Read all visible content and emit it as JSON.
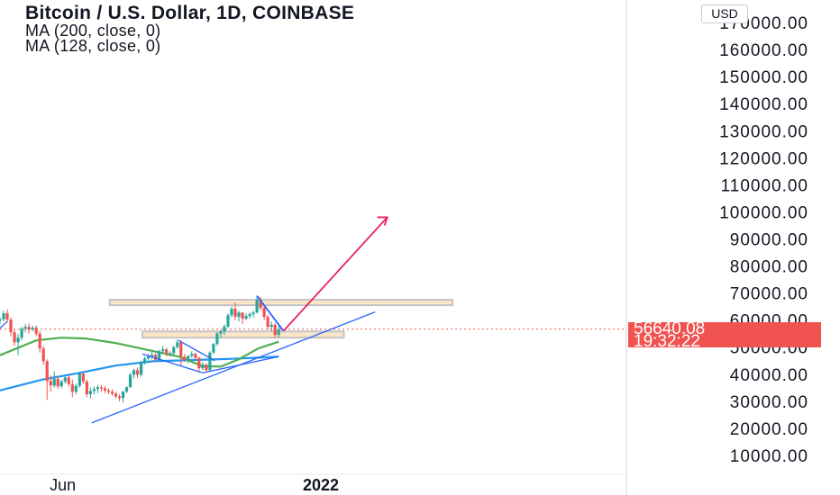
{
  "legend": {
    "title": "Bitcoin / U.S. Dollar, 1D, COINBASE",
    "ma1": "MA (200, close, 0)",
    "ma2": "MA (128, close, 0)"
  },
  "currency": "USD",
  "last_price": "56640.08",
  "countdown": "19:32:22",
  "chart_data": {
    "type": "candlestick",
    "ylim": [
      0,
      180000
    ],
    "y_ticks": [
      10000,
      20000,
      30000,
      40000,
      50000,
      60000,
      70000,
      80000,
      90000,
      100000,
      110000,
      120000,
      130000,
      140000,
      150000,
      160000,
      170000
    ],
    "y_tick_labels": [
      "10000.00",
      "20000.00",
      "30000.00",
      "40000.00",
      "50000.00",
      "60000.00",
      "70000.00",
      "80000.00",
      "90000.00",
      "100000.00",
      "110000.00",
      "120000.00",
      "130000.00",
      "140000.00",
      "150000.00",
      "160000.00",
      "170000.00"
    ],
    "x_tick_labels": [
      {
        "label": "Jun",
        "date": "2021-06-01"
      },
      {
        "label": "2022",
        "date": "2022-01-01"
      }
    ],
    "last_price": 56640.08,
    "candles": [
      [
        "2021-04-10",
        59800,
        61000,
        58500,
        60300
      ],
      [
        "2021-04-13",
        60300,
        63500,
        59500,
        62500
      ],
      [
        "2021-04-16",
        62500,
        64000,
        59000,
        60200
      ],
      [
        "2021-04-19",
        60200,
        61000,
        54000,
        55500
      ],
      [
        "2021-04-22",
        55500,
        56500,
        50500,
        51800
      ],
      [
        "2021-04-25",
        51800,
        55000,
        47000,
        53500
      ],
      [
        "2021-04-28",
        53500,
        57500,
        52500,
        56800
      ],
      [
        "2021-05-01",
        56800,
        58500,
        55500,
        57500
      ],
      [
        "2021-05-04",
        57500,
        58800,
        55000,
        56500
      ],
      [
        "2021-05-07",
        56500,
        58000,
        55800,
        57200
      ],
      [
        "2021-05-10",
        57200,
        58000,
        54000,
        55000
      ],
      [
        "2021-05-13",
        55000,
        56000,
        48000,
        49500
      ],
      [
        "2021-05-16",
        49500,
        50500,
        43500,
        44800
      ],
      [
        "2021-05-19",
        44800,
        45500,
        30500,
        37500
      ],
      [
        "2021-05-22",
        37500,
        39500,
        33500,
        35800
      ],
      [
        "2021-05-25",
        35800,
        41000,
        35000,
        38300
      ],
      [
        "2021-05-28",
        38300,
        39500,
        34500,
        35500
      ],
      [
        "2021-05-31",
        35500,
        38000,
        34800,
        37300
      ],
      [
        "2021-06-03",
        37300,
        39500,
        36500,
        38800
      ],
      [
        "2021-06-06",
        38800,
        39500,
        35500,
        36300
      ],
      [
        "2021-06-09",
        36300,
        38000,
        31500,
        33500
      ],
      [
        "2021-06-12",
        33500,
        36500,
        32500,
        35700
      ],
      [
        "2021-06-15",
        35700,
        40800,
        35000,
        40200
      ],
      [
        "2021-06-18",
        40200,
        41000,
        36500,
        37300
      ],
      [
        "2021-06-21",
        37300,
        38000,
        31500,
        32600
      ],
      [
        "2021-06-24",
        32600,
        35000,
        31000,
        33800
      ],
      [
        "2021-06-27",
        33800,
        35500,
        32500,
        34500
      ],
      [
        "2021-06-30",
        34500,
        36000,
        33000,
        35200
      ],
      [
        "2021-07-03",
        35200,
        36000,
        33500,
        34800
      ],
      [
        "2021-07-06",
        34800,
        35500,
        33000,
        34000
      ],
      [
        "2021-07-09",
        34000,
        34800,
        32500,
        33500
      ],
      [
        "2021-07-12",
        33500,
        34500,
        32000,
        32800
      ],
      [
        "2021-07-15",
        32800,
        33500,
        31000,
        31800
      ],
      [
        "2021-07-18",
        31800,
        32500,
        30000,
        31200
      ],
      [
        "2021-07-21",
        31200,
        33800,
        29500,
        33600
      ],
      [
        "2021-07-24",
        33600,
        35500,
        33000,
        35200
      ],
      [
        "2021-07-27",
        35200,
        40500,
        35000,
        39800
      ],
      [
        "2021-07-30",
        39800,
        42000,
        38500,
        41500
      ],
      [
        "2021-08-02",
        41500,
        42500,
        38500,
        39800
      ],
      [
        "2021-08-05",
        39800,
        45000,
        39000,
        44500
      ],
      [
        "2021-08-08",
        44500,
        46500,
        43500,
        45800
      ],
      [
        "2021-08-11",
        45800,
        47500,
        44500,
        46600
      ],
      [
        "2021-08-14",
        46600,
        48500,
        45500,
        47200
      ],
      [
        "2021-08-17",
        47200,
        47800,
        44500,
        45300
      ],
      [
        "2021-08-20",
        45300,
        49000,
        45000,
        48500
      ],
      [
        "2021-08-23",
        48500,
        50500,
        47500,
        49200
      ],
      [
        "2021-08-26",
        49200,
        49800,
        46500,
        47500
      ],
      [
        "2021-08-29",
        47500,
        48500,
        46500,
        47800
      ],
      [
        "2021-09-01",
        47800,
        50500,
        47000,
        50000
      ],
      [
        "2021-09-04",
        50000,
        52800,
        49500,
        51800
      ],
      [
        "2021-09-07",
        51800,
        52500,
        43000,
        46500
      ],
      [
        "2021-09-10",
        46500,
        47500,
        44500,
        45200
      ],
      [
        "2021-09-13",
        45200,
        47000,
        44000,
        46800
      ],
      [
        "2021-09-16",
        46800,
        48500,
        46000,
        47500
      ],
      [
        "2021-09-19",
        47500,
        48000,
        45500,
        46000
      ],
      [
        "2021-09-22",
        46000,
        46500,
        40500,
        42200
      ],
      [
        "2021-09-25",
        42200,
        44500,
        41500,
        43500
      ],
      [
        "2021-09-28",
        43500,
        44000,
        40800,
        41500
      ],
      [
        "2021-10-01",
        41500,
        48500,
        41000,
        48000
      ],
      [
        "2021-10-04",
        48000,
        51500,
        47500,
        51200
      ],
      [
        "2021-10-07",
        51200,
        55500,
        50500,
        55000
      ],
      [
        "2021-10-10",
        55000,
        56500,
        53500,
        55800
      ],
      [
        "2021-10-13",
        55800,
        58500,
        54500,
        57600
      ],
      [
        "2021-10-16",
        57600,
        62500,
        57000,
        61800
      ],
      [
        "2021-10-19",
        61800,
        65000,
        61000,
        64200
      ],
      [
        "2021-10-22",
        64200,
        66500,
        60000,
        61200
      ],
      [
        "2021-10-25",
        61200,
        63500,
        59500,
        62800
      ],
      [
        "2021-10-28",
        62800,
        63000,
        58500,
        60500
      ],
      [
        "2021-10-31",
        60500,
        62500,
        60000,
        61500
      ],
      [
        "2021-11-03",
        61500,
        63000,
        60500,
        62200
      ],
      [
        "2021-11-06",
        62200,
        63500,
        61000,
        62800
      ],
      [
        "2021-11-09",
        62800,
        69000,
        62500,
        67500
      ],
      [
        "2021-11-12",
        67500,
        68500,
        63500,
        64500
      ],
      [
        "2021-11-15",
        64500,
        65500,
        60000,
        61200
      ],
      [
        "2021-11-18",
        61200,
        62000,
        56500,
        57500
      ],
      [
        "2021-11-21",
        57500,
        59500,
        56000,
        58300
      ],
      [
        "2021-11-24",
        58300,
        59000,
        53500,
        54500
      ],
      [
        "2021-11-27",
        54500,
        58000,
        53500,
        56640
      ]
    ],
    "moving_averages": [
      {
        "name": "MA (200, close, 0)",
        "color": "#2196f3",
        "points": [
          [
            "2021-04-10",
            34000
          ],
          [
            "2021-05-15",
            38000
          ],
          [
            "2021-06-15",
            40500
          ],
          [
            "2021-07-15",
            43200
          ],
          [
            "2021-08-15",
            44800
          ],
          [
            "2021-09-15",
            45200
          ],
          [
            "2021-10-15",
            45600
          ],
          [
            "2021-11-15",
            46200
          ],
          [
            "2021-11-27",
            46500
          ]
        ]
      },
      {
        "name": "MA (128, close, 0)",
        "color": "#4caf50",
        "points": [
          [
            "2021-04-10",
            47000
          ],
          [
            "2021-05-10",
            52500
          ],
          [
            "2021-05-31",
            53500
          ],
          [
            "2021-06-20",
            53200
          ],
          [
            "2021-07-15",
            51500
          ],
          [
            "2021-08-10",
            49000
          ],
          [
            "2021-09-05",
            46500
          ],
          [
            "2021-09-25",
            43000
          ],
          [
            "2021-10-10",
            42800
          ],
          [
            "2021-10-25",
            45500
          ],
          [
            "2021-11-10",
            49500
          ],
          [
            "2021-11-27",
            52000
          ]
        ]
      }
    ],
    "drawings": {
      "zones": [
        {
          "from": "2021-07-10",
          "to": "2022-04-20",
          "low": 65500,
          "high": 67500
        },
        {
          "from": "2021-08-06",
          "to": "2022-01-20",
          "low": 53500,
          "high": 55800
        }
      ],
      "support_line": {
        "start": [
          "2021-06-25",
          22000
        ],
        "end": [
          "2022-02-15",
          63000
        ]
      },
      "descending_channel": [
        [
          [
            "2021-08-06",
            47500
          ],
          [
            "2021-09-25",
            40500
          ]
        ],
        [
          [
            "2021-09-05",
            52500
          ],
          [
            "2021-10-05",
            45000
          ]
        ],
        [
          [
            "2021-09-25",
            40500
          ],
          [
            "2021-11-27",
            46500
          ]
        ]
      ],
      "decline_line": {
        "start": [
          "2021-11-09",
          69000
        ],
        "end": [
          "2021-12-01",
          56000
        ]
      },
      "projection_arrow": {
        "start": [
          "2021-12-01",
          56000
        ],
        "end": [
          "2022-02-25",
          98000
        ]
      },
      "colors": {
        "zone_fill": "#fde6c8",
        "zone_border": "#c3c3c3",
        "trend_lines": "#2962ff",
        "projection": "#e91e63",
        "last_price_line": "#ef5350",
        "up_candle": "#26a69a",
        "down_candle": "#ef5350"
      }
    }
  }
}
